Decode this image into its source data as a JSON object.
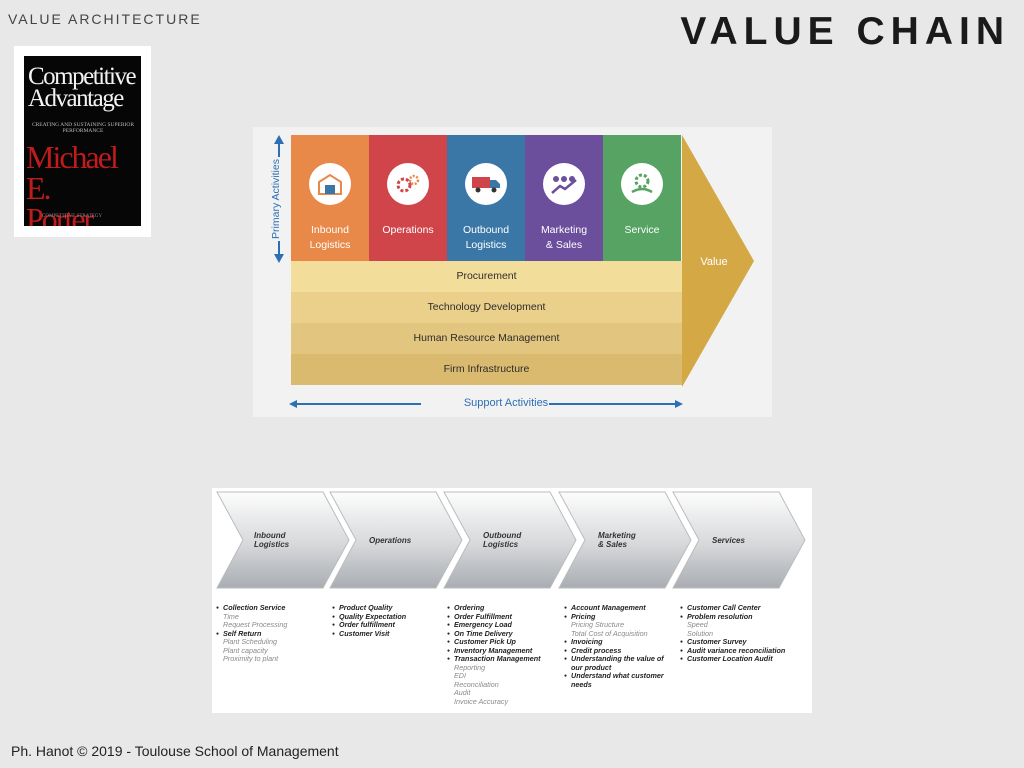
{
  "header": {
    "section": "VALUE ARCHITECTURE",
    "title": "VALUE CHAIN"
  },
  "book": {
    "title_line1": "Competitive",
    "title_line2": "Advantage",
    "subtitle": "CREATING AND SUSTAINING SUPERIOR PERFORMANCE",
    "author_line1": "Michael E.",
    "author_line2": "Porter",
    "footer": "COMPETITIVE STRATEGY"
  },
  "value_chain": {
    "side_label": "Primary Activities",
    "primary": [
      {
        "label_1": "Inbound",
        "label_2": "Logistics",
        "color": "#e8894a",
        "icon": "warehouse-icon"
      },
      {
        "label_1": "Operations",
        "label_2": "",
        "color": "#d0454a",
        "icon": "gears-icon"
      },
      {
        "label_1": "Outbound",
        "label_2": "Logistics",
        "color": "#3a77a6",
        "icon": "truck-icon"
      },
      {
        "label_1": "Marketing",
        "label_2": "& Sales",
        "color": "#6b4e9c",
        "icon": "growth-icon"
      },
      {
        "label_1": "Service",
        "label_2": "",
        "color": "#56a363",
        "icon": "service-gear-icon"
      }
    ],
    "support": [
      {
        "label": "Procurement",
        "color": "#f3dd9a"
      },
      {
        "label": "Technology Development",
        "color": "#ebd08c"
      },
      {
        "label": "Human Resource Management",
        "color": "#e2c57e"
      },
      {
        "label": "Firm Infrastructure",
        "color": "#d9ba6f"
      }
    ],
    "value_label": "Value",
    "value_color": "#d3a845",
    "support_label": "Support Activities"
  },
  "chain2": {
    "stages": [
      {
        "line1": "Inbound",
        "line2": "Logistics"
      },
      {
        "line1": "Operations",
        "line2": ""
      },
      {
        "line1": "Outbound",
        "line2": "Logistics"
      },
      {
        "line1": "Marketing",
        "line2": "& Sales"
      },
      {
        "line1": "Services",
        "line2": ""
      }
    ],
    "columns": [
      [
        {
          "t": "Collection Service",
          "subs": [
            "Time",
            "Request Processing"
          ]
        },
        {
          "t": "Self Return",
          "subs": [
            "Plant Scheduling",
            "Plant capacity",
            "Proximity to plant"
          ]
        }
      ],
      [
        {
          "t": "Product Quality",
          "subs": []
        },
        {
          "t": "Quality Expectation",
          "subs": []
        },
        {
          "t": "Order fulfillment",
          "subs": []
        },
        {
          "t": "Customer Visit",
          "subs": []
        }
      ],
      [
        {
          "t": "Ordering",
          "subs": []
        },
        {
          "t": "Order Fulfillment",
          "subs": []
        },
        {
          "t": "Emergency Load",
          "subs": []
        },
        {
          "t": "On Time Delivery",
          "subs": []
        },
        {
          "t": "Customer Pick Up",
          "subs": []
        },
        {
          "t": "Inventory Management",
          "subs": []
        },
        {
          "t": "Transaction Management",
          "subs": [
            "Reporting",
            "EDI",
            "Reconciliation",
            "Audit",
            "Invoice Accuracy"
          ]
        }
      ],
      [
        {
          "t": "Account Management",
          "subs": []
        },
        {
          "t": "Pricing",
          "subs": [
            "Pricing Structure",
            "Total Cost of Acquisition"
          ]
        },
        {
          "t": "Invoicing",
          "subs": []
        },
        {
          "t": "Credit process",
          "subs": []
        },
        {
          "t": "Understanding the value of our product",
          "subs": []
        },
        {
          "t": "Understand what customer needs",
          "subs": []
        }
      ],
      [
        {
          "t": "Customer Call Center",
          "subs": []
        },
        {
          "t": "Problem resolution",
          "subs": [
            "Speed",
            "Solution"
          ]
        },
        {
          "t": "Customer Survey",
          "subs": []
        },
        {
          "t": "Audit variance reconciliation",
          "subs": []
        },
        {
          "t": "Customer Location Audit",
          "subs": []
        }
      ]
    ]
  },
  "footer": "Ph. Hanot © 2019  -  Toulouse School of Management"
}
